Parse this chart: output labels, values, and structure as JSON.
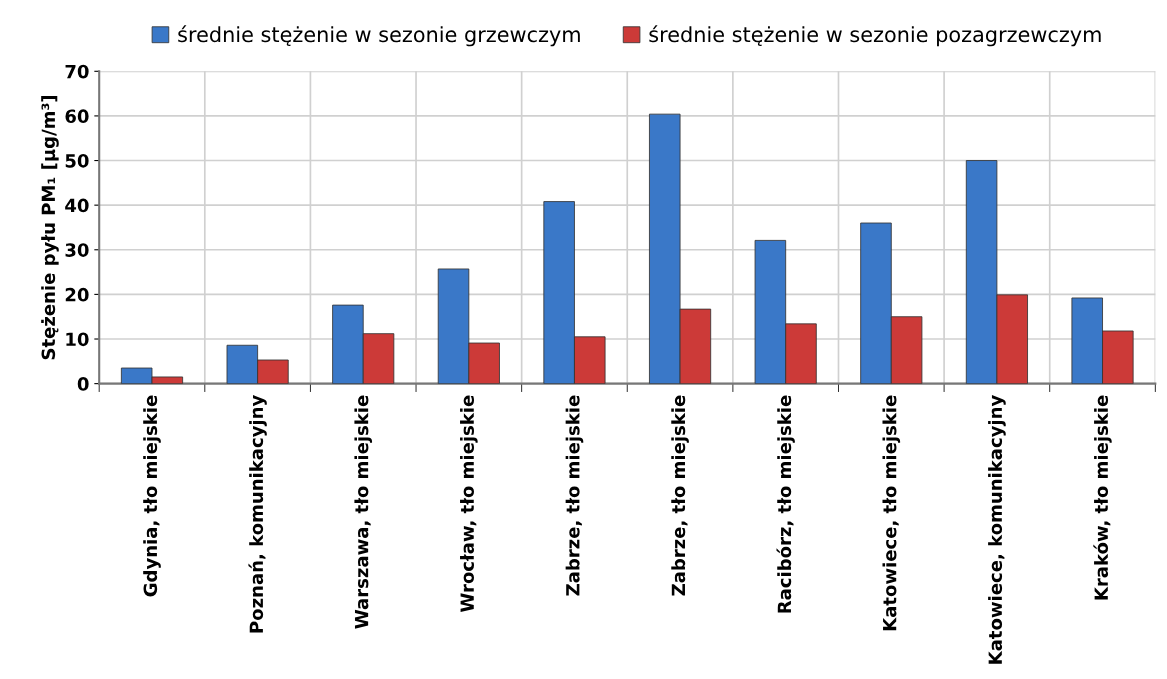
{
  "chart_data": {
    "type": "bar",
    "ylabel": "Stężenie pyłu PM₁ [µg/m³]",
    "categories": [
      "Gdynia, tło miejskie",
      "Poznań, komunikacyjny",
      "Warszawa, tło miejskie",
      "Wrocław, tło miejskie",
      "Zabrze, tło miejskie",
      "Zabrze, tło miejskie",
      "Racibórz, tło miejskie",
      "Katowiece, tło miejskie",
      "Katowiece, komunikacyjny",
      "Kraków, tło miejskie"
    ],
    "series": [
      {
        "name": "średnie stężenie w sezonie grzewczym",
        "color": "#3a78c8",
        "values": [
          3.5,
          8.6,
          17.6,
          25.7,
          40.8,
          60.4,
          32.1,
          36.0,
          50.0,
          19.2
        ]
      },
      {
        "name": "średnie stężenie w sezonie pozagrzewczym",
        "color": "#cc3a38",
        "values": [
          1.5,
          5.3,
          11.2,
          9.1,
          10.5,
          16.7,
          13.4,
          15.0,
          19.9,
          11.8
        ]
      }
    ],
    "ylim": [
      0,
      70
    ],
    "yticks": [
      0,
      10,
      20,
      30,
      40,
      50,
      60,
      70
    ],
    "grid": true,
    "legend": "top"
  }
}
